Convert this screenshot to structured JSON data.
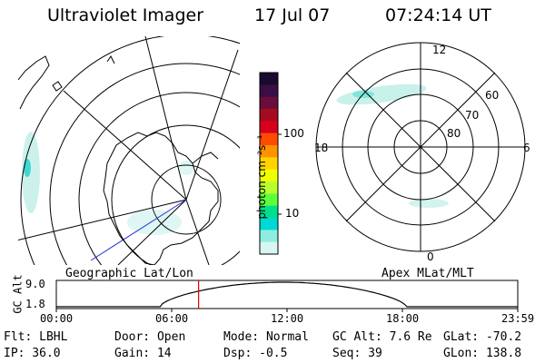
{
  "header": {
    "instrument": "Ultraviolet Imager",
    "date": "17 Jul 07",
    "time": "07:24:14 UT"
  },
  "colorbar": {
    "unit": "photon cm⁻²s⁻¹",
    "ticks": [
      "100",
      "10"
    ],
    "colors": [
      "#1a0a2e",
      "#3a0d47",
      "#6b0d3a",
      "#a60b1f",
      "#d9001e",
      "#ff4b00",
      "#ff9200",
      "#ffd300",
      "#f0ff00",
      "#b8ff2e",
      "#5eff3a",
      "#00e08a",
      "#00d8d2",
      "#8deee0",
      "#d7f6f2"
    ]
  },
  "left_map": {
    "label": "Geographic Lat/Lon"
  },
  "right_map": {
    "label": "Apex MLat/MLT",
    "lat_labels": [
      "60",
      "70",
      "80"
    ],
    "mlt_labels": {
      "top": "12",
      "left": "18",
      "right": "6",
      "bottom": "0"
    }
  },
  "timeline": {
    "ylabel": "GC Alt",
    "yticks": [
      "9.0",
      "1.8"
    ],
    "xticks": [
      "00:00",
      "06:00",
      "12:00",
      "18:00",
      "23:59"
    ],
    "current_hour": 7.4
  },
  "footer": {
    "flt": "Flt: LBHL",
    "ip": "IP: 36.0",
    "door": "Door: Open",
    "gain": "Gain: 14",
    "mode": "Mode: Normal",
    "dsp": "Dsp:  -0.5",
    "gcalt": "GC Alt: 7.6 Re",
    "seq": "Seq: 39",
    "glat": "GLat: -70.2",
    "glon": "GLon: 138.8"
  }
}
